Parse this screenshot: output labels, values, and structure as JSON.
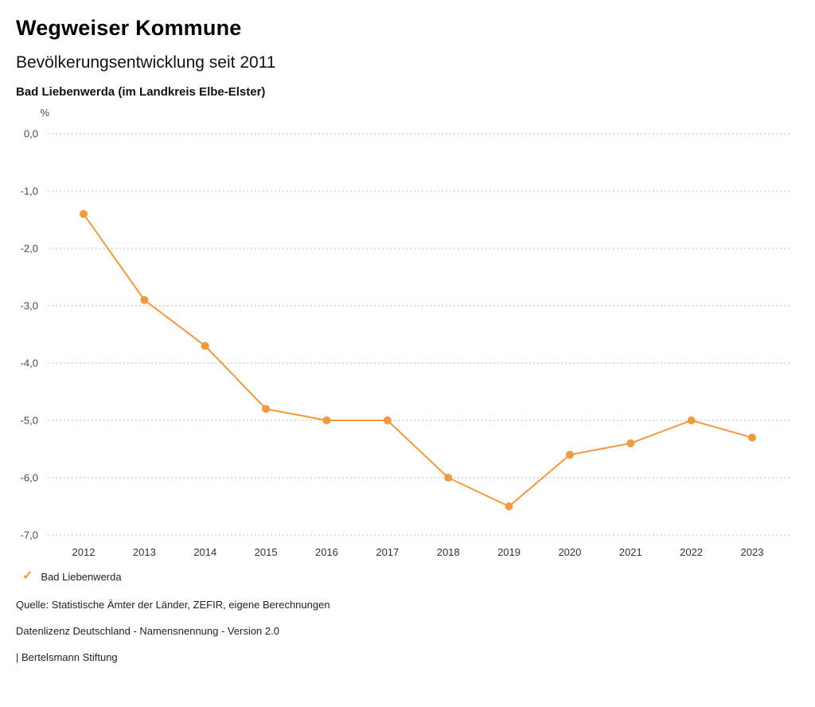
{
  "header": {
    "title": "Wegweiser Kommune",
    "subtitle": "Bevölkerungsentwicklung seit 2011",
    "location": "Bad Liebenwerda (im Landkreis Elbe-Elster)"
  },
  "chart_data": {
    "type": "line",
    "title": "Bevölkerungsentwicklung seit 2011",
    "unit_label": "%",
    "categories": [
      "2012",
      "2013",
      "2014",
      "2015",
      "2016",
      "2017",
      "2018",
      "2019",
      "2020",
      "2021",
      "2022",
      "2023"
    ],
    "series": [
      {
        "name": "Bad Liebenwerda",
        "color": "#f0993d",
        "values": [
          -1.4,
          -2.9,
          -3.7,
          -4.8,
          -5.0,
          -5.0,
          -6.0,
          -6.5,
          -5.6,
          -5.4,
          -5.0,
          -5.3
        ]
      }
    ],
    "ylim": [
      -7.0,
      0.0
    ],
    "ytick_values": [
      0,
      -1,
      -2,
      -3,
      -4,
      -5,
      -6,
      -7
    ],
    "ytick_labels": [
      "0,0",
      "-1,0",
      "-2,0",
      "-3,0",
      "-4,0",
      "-5,0",
      "-6,0",
      "-7,0"
    ],
    "grid": "dotted-horizontal",
    "legend_position": "bottom-left"
  },
  "legend": {
    "items": [
      {
        "label": "Bad Liebenwerda",
        "color": "#f0993d",
        "marker": "checkmark-icon",
        "check_glyph": "✓"
      }
    ]
  },
  "footer": {
    "source": "Quelle: Statistische Ämter der Länder, ZEFIR, eigene Berechnungen",
    "license": "Datenlizenz Deutschland - Namensnennung - Version 2.0",
    "attribution": "| Bertelsmann Stiftung"
  }
}
